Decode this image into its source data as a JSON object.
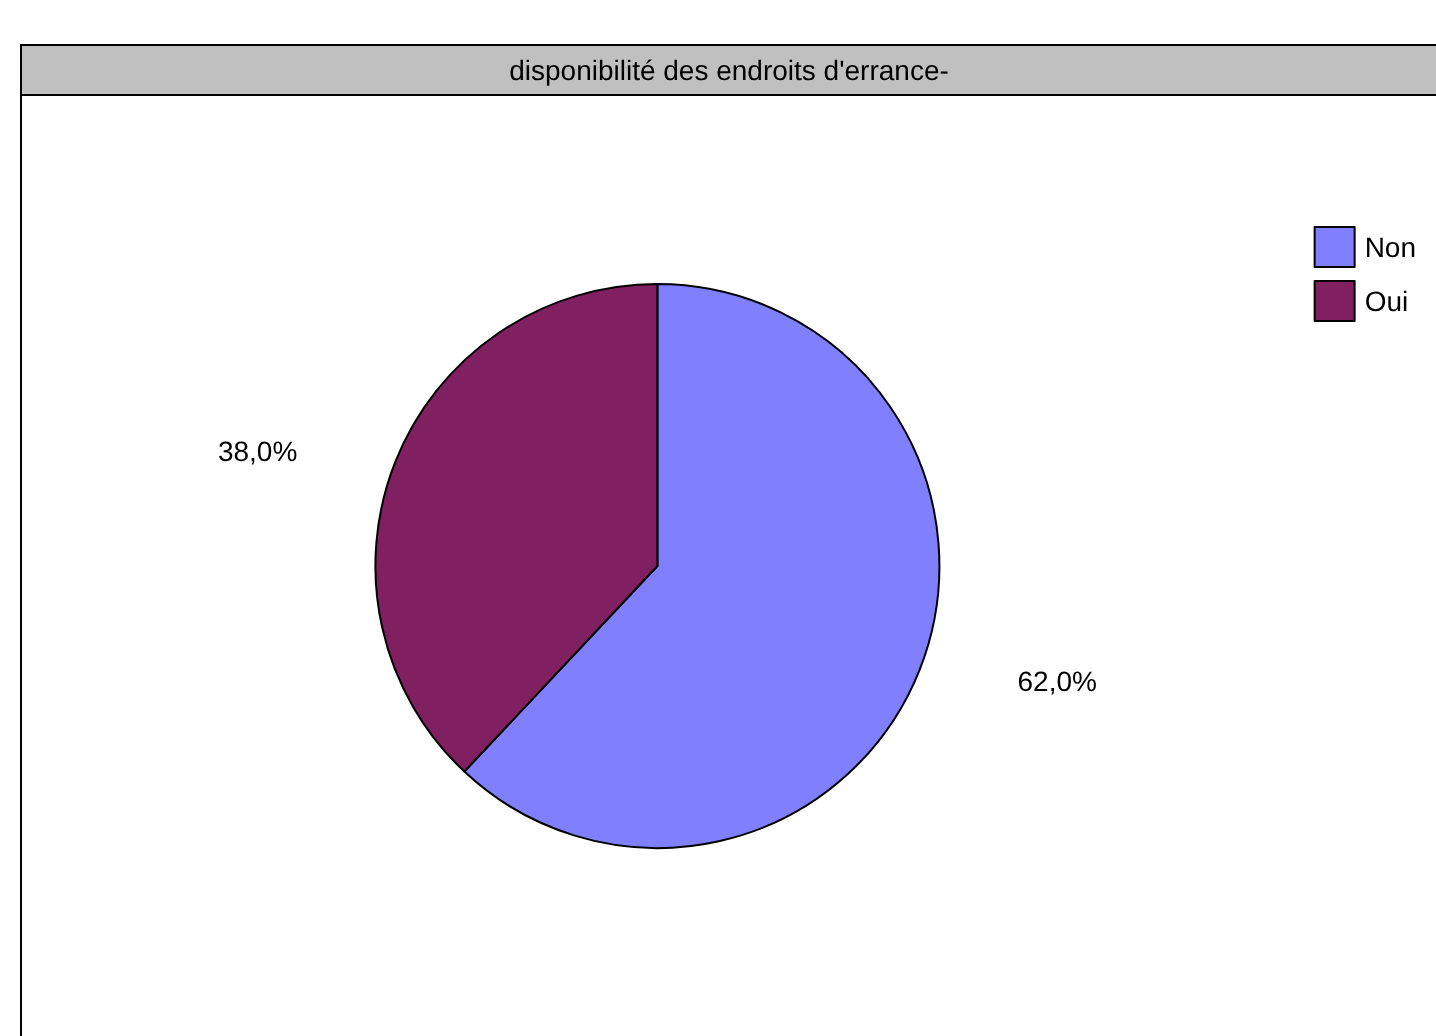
{
  "chart_data": {
    "type": "pie",
    "title": "disponibilité des endroits d'errance-",
    "categories": [
      "Non",
      "Oui"
    ],
    "values": [
      62,
      38
    ],
    "colors": [
      "#8080ff",
      "#802060"
    ],
    "value_labels": [
      "62,0%",
      "38,0%"
    ],
    "legend": "top right"
  }
}
